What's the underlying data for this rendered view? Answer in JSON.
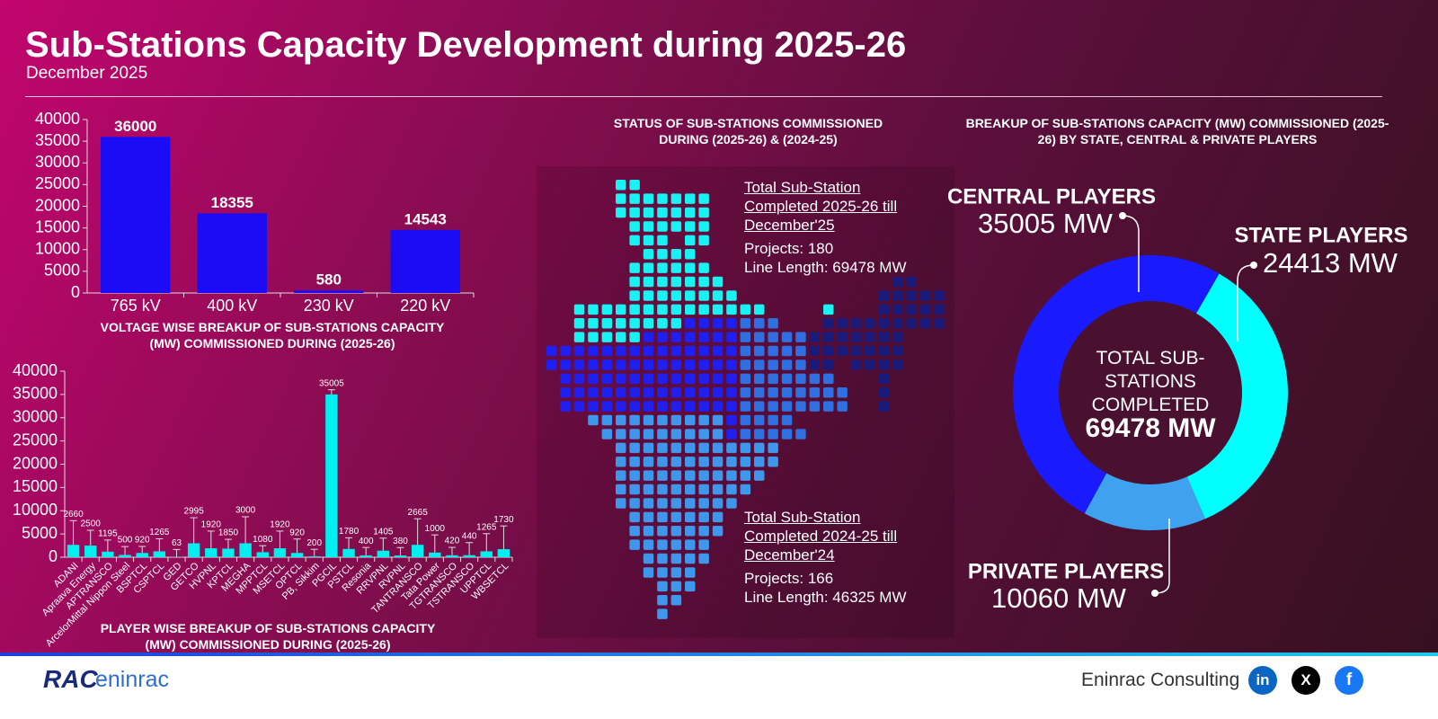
{
  "header": {
    "title": "Sub-Stations Capacity Development during 2025-26",
    "subtitle": "December 2025"
  },
  "chart_data": [
    {
      "type": "bar",
      "title": "VOLTAGE WISE BREAKUP OF SUB-STATIONS CAPACITY (MW) COMMISSIONED DURING (2025-26)",
      "categories": [
        "765 kV",
        "400 kV",
        "230 kV",
        "220 kV"
      ],
      "values": [
        36000,
        18355,
        580,
        14543
      ],
      "color": "#1c0cf5",
      "ylim": [
        0,
        40000
      ],
      "yticks": [
        0,
        5000,
        10000,
        15000,
        20000,
        25000,
        30000,
        35000,
        40000
      ]
    },
    {
      "type": "errorbar",
      "title": "PLAYER WISE BREAKUP OF SUB-STATIONS CAPACITY (MW) COMMISSIONED DURING (2025-26)",
      "categories": [
        "ADANI",
        "Apraava Energy",
        "APTRANSCO",
        "ArcelorMittal Nippon Steel",
        "BSPTCL",
        "CSPTCL",
        "GED",
        "GETCO",
        "HVPNL",
        "KPTCL",
        "MEGHA",
        "MPPTCL",
        "MSETCL",
        "OPTCL",
        "PB, Sikkim",
        "PGCIL",
        "PSTCL",
        "Resonia",
        "RRVPNL",
        "RVPNL",
        "TANTRANSCO",
        "Tata Power",
        "TGTRANSCO",
        "TSTRANSCO",
        "UPPTCL",
        "WBSETCL"
      ],
      "values": [
        2660,
        2500,
        1195,
        500,
        920,
        1265,
        63,
        2995,
        1920,
        1850,
        3000,
        1080,
        1920,
        920,
        200,
        35005,
        1780,
        400,
        1405,
        380,
        2665,
        1000,
        420,
        440,
        1265,
        1730
      ],
      "errors": [
        5200,
        3300,
        2500,
        1800,
        1400,
        2700,
        1600,
        5500,
        3700,
        2000,
        5700,
        1400,
        3700,
        3000,
        1500,
        1000,
        2400,
        1700,
        2700,
        1700,
        5600,
        3800,
        1700,
        2700,
        3800,
        5000
      ],
      "color": "#00f0f0",
      "ylim": [
        0,
        40000
      ],
      "yticks": [
        0,
        5000,
        10000,
        15000,
        20000,
        25000,
        30000,
        35000,
        40000
      ]
    },
    {
      "type": "donut",
      "title": "BREAKUP OF SUB-STATIONS CAPACITY (MW) COMMISSIONED (2025-26) BY STATE, CENTRAL & PRIVATE PLAYERS",
      "categories": [
        "STATE PLAYERS",
        "PRIVATE PLAYERS",
        "CENTRAL PLAYERS"
      ],
      "values": [
        24413,
        10060,
        35005
      ],
      "value_labels": [
        "24413 MW",
        "10060 MW",
        "35005 MW"
      ],
      "colors": [
        "#00ffff",
        "#3fa2f0",
        "#1a1aff"
      ],
      "center_text": "TOTAL SUB-STATIONS COMPLETED",
      "center_value": "69478 MW"
    }
  ],
  "map_panel": {
    "title": "STATUS OF SUB-STATIONS COMMISSIONED DURING (2025-26) & (2024-25)",
    "blocks": [
      {
        "heading": "Total Sub-Station Completed 2025-26 till December'25",
        "projects": "Projects: 180",
        "line_length": "Line Length: 69478 MW"
      },
      {
        "heading": "Total Sub-Station Completed 2024-25 till December'24",
        "projects": "Projects: 166",
        "line_length": "Line Length: 46325 MW"
      }
    ]
  },
  "footer": {
    "logo_mark": "RAC",
    "logo_text": "eninrac",
    "company": "Eninrac Consulting",
    "social": [
      "in",
      "X",
      "f"
    ]
  }
}
